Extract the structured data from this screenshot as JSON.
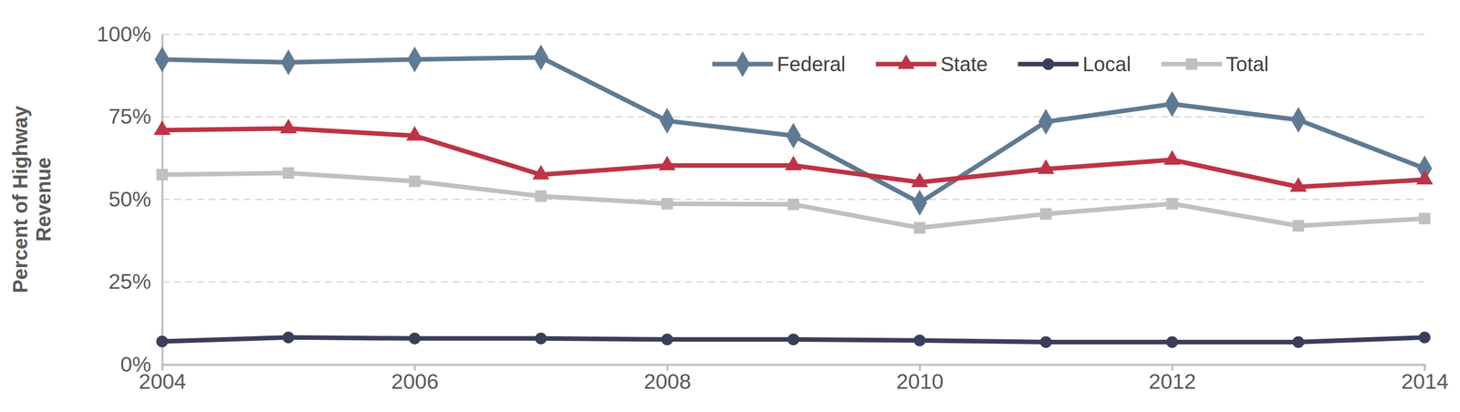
{
  "chart_data": {
    "type": "line",
    "y_label": "Percent of Highway Revenue",
    "x": [
      2004,
      2005,
      2006,
      2007,
      2008,
      2009,
      2010,
      2011,
      2012,
      2013,
      2014
    ],
    "xlim": [
      2004,
      2014
    ],
    "xticks": [
      2004,
      2006,
      2008,
      2010,
      2012,
      2014
    ],
    "ylim": [
      0,
      100
    ],
    "yticks": [
      {
        "value": 0,
        "label": "0%"
      },
      {
        "value": 25,
        "label": "25%"
      },
      {
        "value": 50,
        "label": "50%"
      },
      {
        "value": 75,
        "label": "75%"
      },
      {
        "value": 100,
        "label": "100%"
      }
    ],
    "grid": true,
    "legend": "top-right",
    "series": [
      {
        "name": "Federal",
        "color": "#5f7a93",
        "marker": "diamond",
        "values": [
          92.4,
          91.5,
          92.4,
          93.0,
          73.8,
          69.3,
          49.0,
          73.5,
          78.9,
          74.1,
          59.4
        ]
      },
      {
        "name": "State",
        "color": "#be3346",
        "marker": "triangle",
        "values": [
          71.0,
          71.5,
          69.3,
          57.5,
          60.3,
          60.3,
          55.2,
          59.2,
          62.0,
          53.8,
          56.0
        ]
      },
      {
        "name": "Local",
        "color": "#3b3e59",
        "marker": "circle",
        "values": [
          7.0,
          8.2,
          7.9,
          7.9,
          7.6,
          7.6,
          7.3,
          6.8,
          6.8,
          6.8,
          8.2
        ]
      },
      {
        "name": "Total",
        "color": "#c0c0c0",
        "marker": "square",
        "values": [
          57.5,
          58.0,
          55.5,
          51.0,
          48.7,
          48.5,
          41.4,
          45.6,
          48.7,
          42.0,
          44.2
        ]
      }
    ]
  }
}
